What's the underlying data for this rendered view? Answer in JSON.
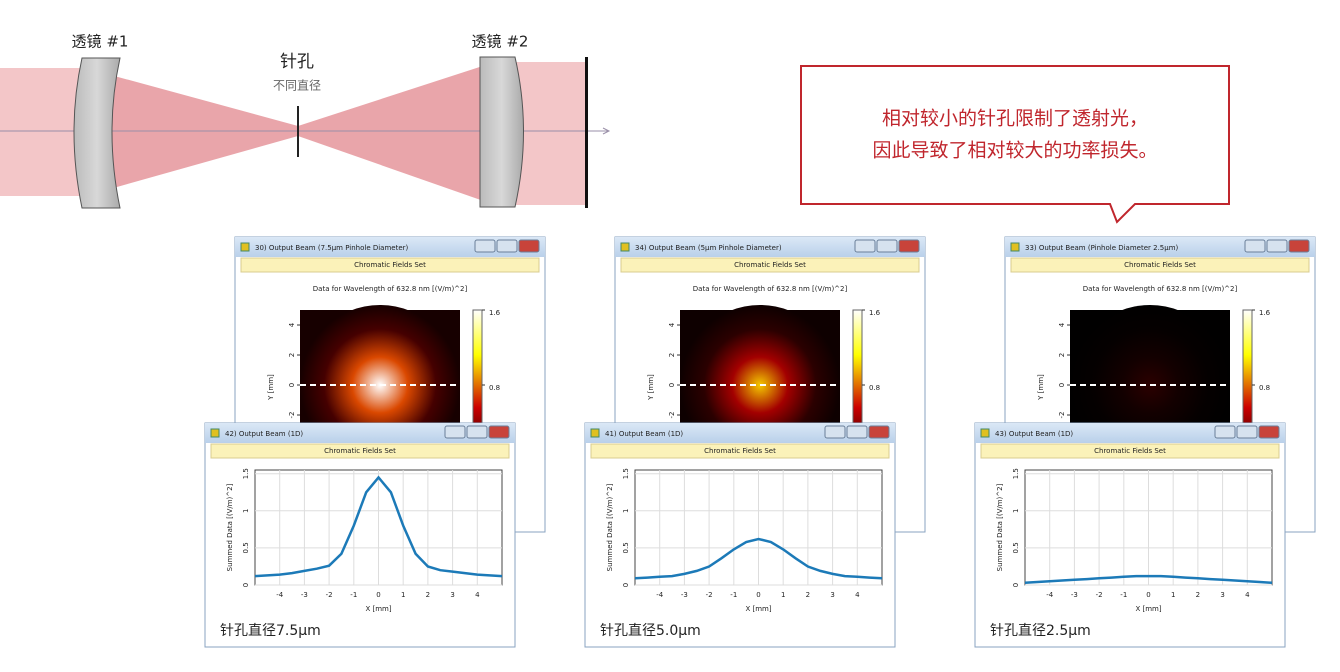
{
  "diagram": {
    "lens1": "透镜 #1",
    "lens2": "透镜 #2",
    "pinhole": "针孔",
    "pinhole_note": "不同直径"
  },
  "callout": [
    "相对较小的针孔限制了透射光，",
    "因此导致了相对较大的功率损失。"
  ],
  "heatmap_windows": [
    {
      "title": "30) Output Beam (7.5μm Pinhole Diameter)",
      "header": "Chromatic Fields Set",
      "caption": "Data for Wavelength of 632.8 nm  [(V/m)^2]",
      "ylabel": "Y [mm]",
      "ylim": [
        -5,
        5
      ],
      "yticks": [
        -2,
        0,
        2,
        4
      ],
      "clim": [
        0,
        1.6
      ],
      "cticks": [
        0.8,
        1.6
      ],
      "peak": 1.6
    },
    {
      "title": "34) Output Beam (5μm Pinhole Diameter)",
      "header": "Chromatic Fields Set",
      "caption": "Data for Wavelength of 632.8 nm  [(V/m)^2]",
      "ylabel": "Y [mm]",
      "ylim": [
        -5,
        5
      ],
      "yticks": [
        -2,
        0,
        2,
        4
      ],
      "clim": [
        0,
        1.6
      ],
      "cticks": [
        0.8,
        1.6
      ],
      "peak": 1.0
    },
    {
      "title": "33) Output Beam (Pinhole Diameter 2.5μm)",
      "header": "Chromatic Fields Set",
      "caption": "Data for Wavelength of 632.8 nm  [(V/m)^2]",
      "ylabel": "Y [mm]",
      "ylim": [
        -5,
        5
      ],
      "yticks": [
        -2,
        0,
        2,
        4
      ],
      "clim": [
        0,
        1.6
      ],
      "cticks": [
        0.8,
        1.6
      ],
      "peak": 0.12
    }
  ],
  "chart_data": [
    {
      "type": "line",
      "window_title": "42) Output Beam (1D)",
      "header": "Chromatic Fields Set",
      "caption": "针孔直径7.5μm",
      "xlabel": "X [mm]",
      "ylabel": "Summed Data [(V/m)^2]",
      "grid": true,
      "x": [
        -5,
        -4.5,
        -4,
        -3.5,
        -3,
        -2.5,
        -2,
        -1.5,
        -1,
        -0.5,
        0,
        0.5,
        1,
        1.5,
        2,
        2.5,
        3,
        3.5,
        4,
        4.5,
        5
      ],
      "xlim": [
        -5,
        5
      ],
      "xticks": [
        -4,
        -3,
        -2,
        -1,
        0,
        1,
        2,
        3,
        4
      ],
      "ylim": [
        0,
        1.55
      ],
      "yticks": [
        0,
        0.5,
        1,
        1.5
      ],
      "series": [
        {
          "color": "#1c7ab8",
          "values": [
            0.12,
            0.13,
            0.14,
            0.16,
            0.19,
            0.22,
            0.26,
            0.42,
            0.8,
            1.25,
            1.45,
            1.25,
            0.8,
            0.42,
            0.25,
            0.2,
            0.18,
            0.16,
            0.14,
            0.13,
            0.12
          ]
        }
      ]
    },
    {
      "type": "line",
      "window_title": "41) Output Beam (1D)",
      "header": "Chromatic Fields Set",
      "caption": "针孔直径5.0μm",
      "xlabel": "X [mm]",
      "ylabel": "Summed Data [(V/m)^2]",
      "grid": true,
      "x": [
        -5,
        -4.5,
        -4,
        -3.5,
        -3,
        -2.5,
        -2,
        -1.5,
        -1,
        -0.5,
        0,
        0.5,
        1,
        1.5,
        2,
        2.5,
        3,
        3.5,
        4,
        4.5,
        5
      ],
      "xlim": [
        -5,
        5
      ],
      "xticks": [
        -4,
        -3,
        -2,
        -1,
        0,
        1,
        2,
        3,
        4
      ],
      "ylim": [
        0,
        1.55
      ],
      "yticks": [
        0,
        0.5,
        1,
        1.5
      ],
      "series": [
        {
          "color": "#1c7ab8",
          "values": [
            0.09,
            0.1,
            0.11,
            0.12,
            0.15,
            0.19,
            0.25,
            0.36,
            0.48,
            0.58,
            0.62,
            0.58,
            0.48,
            0.36,
            0.25,
            0.19,
            0.15,
            0.12,
            0.11,
            0.1,
            0.09
          ]
        }
      ]
    },
    {
      "type": "line",
      "window_title": "43) Output Beam (1D)",
      "header": "Chromatic Fields Set",
      "caption": "针孔直径2.5μm",
      "xlabel": "X [mm]",
      "ylabel": "Summed Data [(V/m)^2]",
      "grid": true,
      "x": [
        -5,
        -4.5,
        -4,
        -3.5,
        -3,
        -2.5,
        -2,
        -1.5,
        -1,
        -0.5,
        0,
        0.5,
        1,
        1.5,
        2,
        2.5,
        3,
        3.5,
        4,
        4.5,
        5
      ],
      "xlim": [
        -5,
        5
      ],
      "xticks": [
        -4,
        -3,
        -2,
        -1,
        0,
        1,
        2,
        3,
        4
      ],
      "ylim": [
        0,
        1.55
      ],
      "yticks": [
        0,
        0.5,
        1,
        1.5
      ],
      "series": [
        {
          "color": "#1c7ab8",
          "values": [
            0.03,
            0.04,
            0.05,
            0.06,
            0.07,
            0.08,
            0.09,
            0.1,
            0.11,
            0.12,
            0.12,
            0.12,
            0.11,
            0.1,
            0.09,
            0.08,
            0.07,
            0.06,
            0.05,
            0.04,
            0.03
          ]
        }
      ]
    }
  ]
}
